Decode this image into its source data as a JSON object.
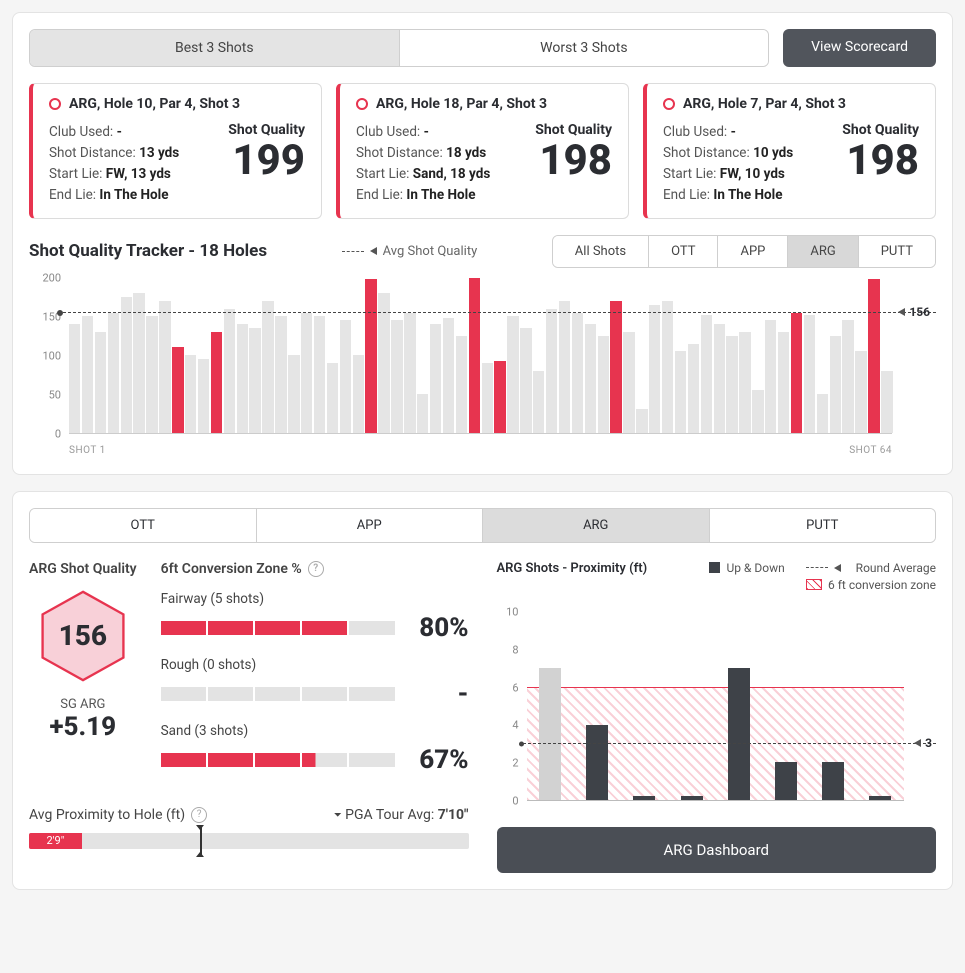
{
  "colors": {
    "accent": "#e7344f",
    "bar_muted": "#e5e5e5",
    "dark": "#3e4248"
  },
  "top_tabs": {
    "best": "Best 3 Shots",
    "worst": "Worst 3 Shots",
    "active": "best"
  },
  "view_scorecard": "View Scorecard",
  "shot_cards": [
    {
      "title": "ARG, Hole 10, Par 4, Shot 3",
      "club_lbl": "Club Used:",
      "club": "-",
      "dist_lbl": "Shot Distance:",
      "dist": "13 yds",
      "start_lbl": "Start Lie:",
      "start": "FW, 13 yds",
      "end_lbl": "End Lie:",
      "end": "In The Hole",
      "sq_lbl": "Shot Quality",
      "sq": "199"
    },
    {
      "title": "ARG, Hole 18, Par 4, Shot 3",
      "club_lbl": "Club Used:",
      "club": "-",
      "dist_lbl": "Shot Distance:",
      "dist": "18 yds",
      "start_lbl": "Start Lie:",
      "start": "Sand, 18 yds",
      "end_lbl": "End Lie:",
      "end": "In The Hole",
      "sq_lbl": "Shot Quality",
      "sq": "198"
    },
    {
      "title": "ARG, Hole 7, Par 4, Shot 3",
      "club_lbl": "Club Used:",
      "club": "-",
      "dist_lbl": "Shot Distance:",
      "dist": "10 yds",
      "start_lbl": "Start Lie:",
      "start": "FW, 10 yds",
      "end_lbl": "End Lie:",
      "end": "In The Hole",
      "sq_lbl": "Shot Quality",
      "sq": "198"
    }
  ],
  "tracker": {
    "title": "Shot Quality Tracker - 18 Holes",
    "avg_legend": "Avg Shot Quality",
    "tabs": [
      "All Shots",
      "OTT",
      "APP",
      "ARG",
      "PUTT"
    ],
    "active_tab": "ARG",
    "y_ticks": [
      "0",
      "50",
      "100",
      "150",
      "200"
    ],
    "y_max": 200,
    "avg": 156,
    "avg_label": "156",
    "x_first": "SHOT 1",
    "x_last": "SHOT 64",
    "bars": [
      {
        "v": 140,
        "hl": false
      },
      {
        "v": 150,
        "hl": false
      },
      {
        "v": 130,
        "hl": false
      },
      {
        "v": 155,
        "hl": false
      },
      {
        "v": 175,
        "hl": false
      },
      {
        "v": 180,
        "hl": false
      },
      {
        "v": 150,
        "hl": false
      },
      {
        "v": 170,
        "hl": false
      },
      {
        "v": 110,
        "hl": true
      },
      {
        "v": 100,
        "hl": false
      },
      {
        "v": 95,
        "hl": false
      },
      {
        "v": 130,
        "hl": true
      },
      {
        "v": 160,
        "hl": false
      },
      {
        "v": 140,
        "hl": false
      },
      {
        "v": 135,
        "hl": false
      },
      {
        "v": 170,
        "hl": false
      },
      {
        "v": 150,
        "hl": false
      },
      {
        "v": 100,
        "hl": false
      },
      {
        "v": 155,
        "hl": false
      },
      {
        "v": 150,
        "hl": false
      },
      {
        "v": 90,
        "hl": false
      },
      {
        "v": 145,
        "hl": false
      },
      {
        "v": 100,
        "hl": false
      },
      {
        "v": 198,
        "hl": true
      },
      {
        "v": 180,
        "hl": false
      },
      {
        "v": 145,
        "hl": false
      },
      {
        "v": 155,
        "hl": false
      },
      {
        "v": 50,
        "hl": false
      },
      {
        "v": 140,
        "hl": false
      },
      {
        "v": 148,
        "hl": false
      },
      {
        "v": 125,
        "hl": false
      },
      {
        "v": 199,
        "hl": true
      },
      {
        "v": 90,
        "hl": false
      },
      {
        "v": 92,
        "hl": true
      },
      {
        "v": 150,
        "hl": false
      },
      {
        "v": 135,
        "hl": false
      },
      {
        "v": 80,
        "hl": false
      },
      {
        "v": 160,
        "hl": false
      },
      {
        "v": 170,
        "hl": false
      },
      {
        "v": 155,
        "hl": false
      },
      {
        "v": 140,
        "hl": false
      },
      {
        "v": 125,
        "hl": false
      },
      {
        "v": 170,
        "hl": true
      },
      {
        "v": 130,
        "hl": false
      },
      {
        "v": 30,
        "hl": false
      },
      {
        "v": 165,
        "hl": false
      },
      {
        "v": 170,
        "hl": false
      },
      {
        "v": 105,
        "hl": false
      },
      {
        "v": 115,
        "hl": false
      },
      {
        "v": 152,
        "hl": false
      },
      {
        "v": 140,
        "hl": false
      },
      {
        "v": 125,
        "hl": false
      },
      {
        "v": 130,
        "hl": false
      },
      {
        "v": 55,
        "hl": false
      },
      {
        "v": 145,
        "hl": false
      },
      {
        "v": 130,
        "hl": false
      },
      {
        "v": 155,
        "hl": true
      },
      {
        "v": 152,
        "hl": false
      },
      {
        "v": 50,
        "hl": false
      },
      {
        "v": 125,
        "hl": false
      },
      {
        "v": 145,
        "hl": false
      },
      {
        "v": 105,
        "hl": false
      },
      {
        "v": 198,
        "hl": true
      },
      {
        "v": 80,
        "hl": false
      }
    ]
  },
  "lower_tabs": {
    "items": [
      "OTT",
      "APP",
      "ARG",
      "PUTT"
    ],
    "active": "ARG"
  },
  "arg_quality": {
    "title": "ARG Shot Quality",
    "hex_value": "156",
    "sg_label": "SG ARG",
    "sg_value": "+5.19"
  },
  "conversion": {
    "title": "6ft Conversion Zone %",
    "rows": [
      {
        "label": "Fairway (5 shots)",
        "filled": 4,
        "total": 5,
        "pct": "80%"
      },
      {
        "label": "Rough (0 shots)",
        "filled": 0,
        "total": 5,
        "pct": "-"
      },
      {
        "label": "Sand (3 shots)",
        "filled": 3,
        "plus_half": true,
        "total": 5,
        "pct": "67%"
      }
    ]
  },
  "avg_prox": {
    "title": "Avg Proximity to Hole (ft)",
    "pga_label": "PGA Tour Avg:",
    "pga_value": "7'10\"",
    "user_value": "2'9\"",
    "user_pct": 12,
    "marker_pct": 39
  },
  "prox_chart": {
    "title": "ARG Shots - Proximity (ft)",
    "legend_updown": "Up & Down",
    "legend_roundavg": "Round Average",
    "legend_zone": "6 ft conversion zone",
    "y_ticks": [
      "0",
      "2",
      "4",
      "6",
      "8",
      "10"
    ],
    "y_max": 10.5,
    "zone_top": 6,
    "avg": 3,
    "avg_label": "3",
    "bars": [
      {
        "v": 7,
        "up": false
      },
      {
        "v": 4,
        "up": true
      },
      {
        "v": 0.2,
        "up": true
      },
      {
        "v": 0.2,
        "up": true
      },
      {
        "v": 7,
        "up": true
      },
      {
        "v": 2,
        "up": true
      },
      {
        "v": 2,
        "up": true
      },
      {
        "v": 0.2,
        "up": true
      }
    ]
  },
  "dashboard_btn": "ARG Dashboard"
}
